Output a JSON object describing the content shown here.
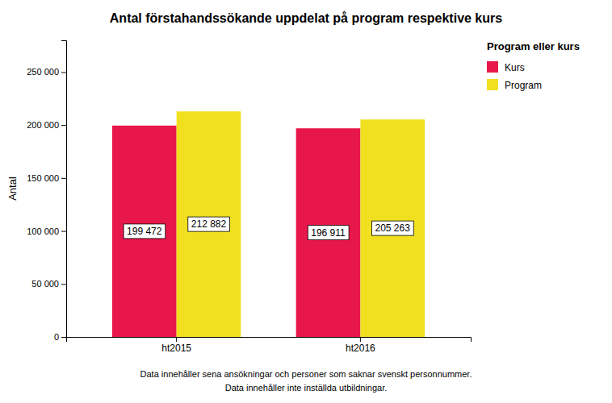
{
  "chart_data": {
    "type": "bar",
    "title": "Antal förstahandssökande uppdelat på program respektive kurs",
    "categories": [
      "ht2015",
      "ht2016"
    ],
    "series": [
      {
        "name": "Kurs",
        "color": "#E8174B",
        "values": [
          199472,
          196911
        ],
        "value_labels": [
          "199 472",
          "196 911"
        ]
      },
      {
        "name": "Program",
        "color": "#F0E020",
        "values": [
          212882,
          205263
        ],
        "value_labels": [
          "212 882",
          "205 263"
        ]
      }
    ],
    "ylabel": "Antal",
    "ylim": [
      0,
      280000
    ],
    "yticks": [
      0,
      {
        "value": 50000,
        "label": "50 000"
      },
      {
        "value": 100000,
        "label": "100 000"
      },
      {
        "value": 150000,
        "label": "150 000"
      },
      {
        "value": 200000,
        "label": "200 000"
      },
      {
        "value": 250000,
        "label": "250 000"
      }
    ],
    "legend_title": "Program eller kurs",
    "legend": "top-right",
    "grid": false,
    "data_labels": true,
    "annotations": [
      "Data innehåller sena ansökningar och personer som saknar svenskt personnummer.",
      "Data innehåller inte inställda utbildningar."
    ]
  }
}
